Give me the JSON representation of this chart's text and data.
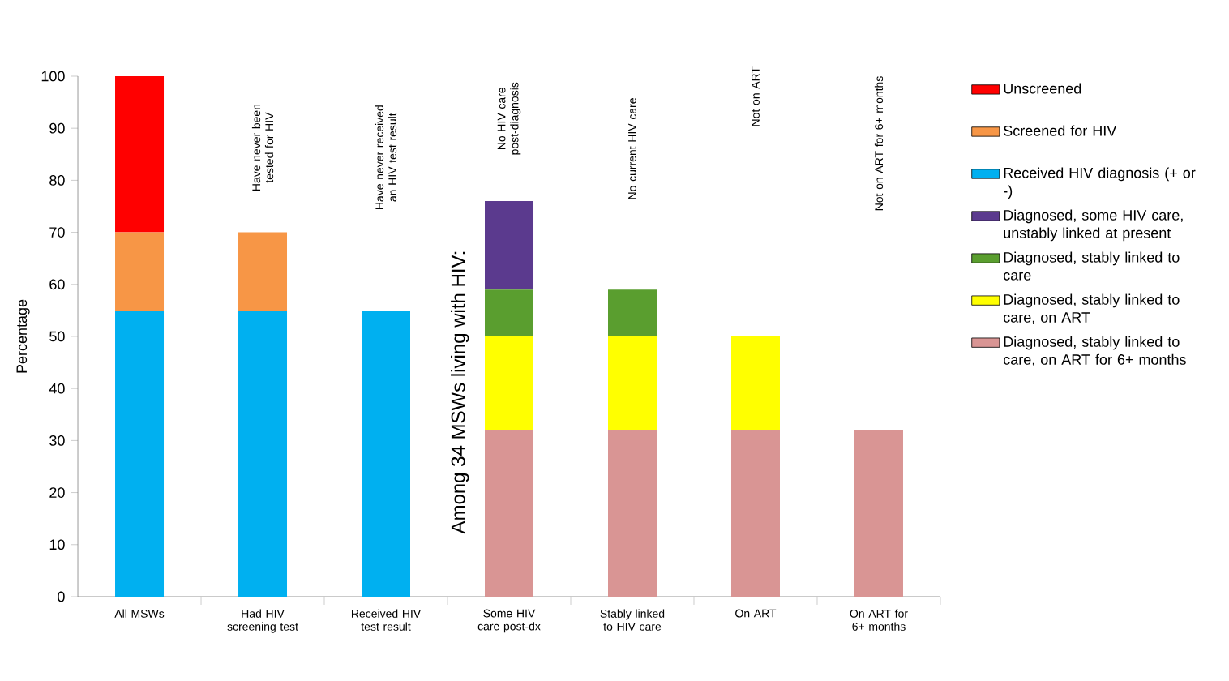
{
  "chart_data": {
    "type": "bar",
    "stacked": true,
    "ylabel": "Percentage",
    "categories": [
      "All MSWs",
      "Had HIV screening test",
      "Received  HIV test result",
      "Some HIV care post-dx",
      "Stably linked to HIV care",
      "On ART",
      "On ART for 6+ months"
    ],
    "series": [
      {
        "name": "Diagnosed, stably linked to care, on ART for 6+ months",
        "color": "#d99594",
        "values": [
          null,
          null,
          null,
          32,
          32,
          32,
          32
        ]
      },
      {
        "name": "Diagnosed, stably linked to care, on ART",
        "color": "#ffff00",
        "values": [
          null,
          null,
          null,
          18,
          18,
          18,
          null
        ]
      },
      {
        "name": "Diagnosed, stably linked to care",
        "color": "#5a9e2f",
        "values": [
          null,
          null,
          null,
          9,
          9,
          null,
          null
        ]
      },
      {
        "name": "Diagnosed, some HIV care, unstably linked at present",
        "color": "#5b3a8e",
        "values": [
          null,
          null,
          null,
          17,
          null,
          null,
          null
        ]
      },
      {
        "name": "Received HIV diagnosis (+ or -)",
        "color": "#00b0f0",
        "values": [
          55,
          55,
          55,
          null,
          null,
          null,
          null
        ]
      },
      {
        "name": "Screened for HIV",
        "color": "#f79646",
        "values": [
          15,
          15,
          null,
          null,
          null,
          null,
          null
        ]
      },
      {
        "name": "Unscreened",
        "color": "#ff0000",
        "values": [
          30,
          null,
          null,
          null,
          null,
          null,
          null
        ]
      }
    ],
    "ylim": [
      0,
      100
    ],
    "yticks": [
      0,
      10,
      20,
      30,
      40,
      50,
      60,
      70,
      80,
      90,
      100
    ],
    "legend": "right",
    "annotations": [
      "Have never been tested for HIV",
      "Have never received an HIV test result",
      "No HIV care post-diagnosis",
      "No current HIV care",
      "Not on ART",
      "Not on ART for 6+ months",
      "Among 34 MSWs living with HIV:"
    ]
  }
}
